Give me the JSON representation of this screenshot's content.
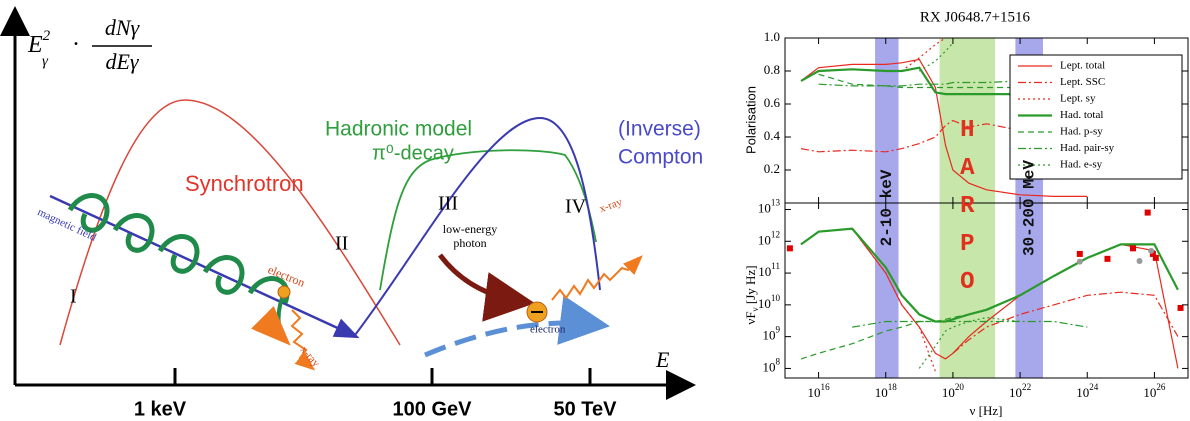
{
  "diagram": {
    "y_axis_label": {
      "symbol": "E",
      "symbol_sub": "γ",
      "symbol_sup": "2",
      "dot": "·",
      "numerator": "dNγ",
      "denominator": "dEγ"
    },
    "x_axis_label": "E",
    "ticks": [
      "1 keV",
      "100 GeV",
      "50 TeV"
    ],
    "labels": {
      "synchrotron": "Synchrotron",
      "hadronic_model": "Hadronic model",
      "pi_decay": "π⁰-decay",
      "inverse": "(Inverse)",
      "compton": "Compton",
      "magnetic_field": "magnetic field",
      "electron_left": "electron",
      "xray_left": "x-ray",
      "low_energy_photon": [
        "low-energy",
        "photon"
      ],
      "electron_right": "electron",
      "xray_right": "x-ray"
    },
    "regions": [
      "I",
      "II",
      "III",
      "IV"
    ]
  },
  "chart_data": [
    {
      "type": "line",
      "title": "RX J0648.7+1516",
      "y_label": "Polarisation",
      "x": [
        3000000000000000.0,
        1e+16,
        1e+17,
        1e+18,
        3e+18,
        1e+19,
        3e+19,
        6e+19,
        1e+20,
        3e+20,
        1e+21,
        1e+22,
        1e+23,
        1e+24,
        1e+25,
        1e+26,
        5e+26
      ],
      "xlim": [
        1000000000000000.0,
        1e+27
      ],
      "xscale": "log",
      "ylim": [
        0,
        1
      ],
      "yticks": [
        0.2,
        0.4,
        0.6,
        0.8,
        {
          "value": 1,
          "label": "1.0"
        }
      ],
      "legend": "upper right",
      "bands": [
        {
          "label": "2-10 keV",
          "from": 4.8e+17,
          "to": 2.4e+18,
          "color": "#8a8ae6",
          "text_color": "#111111"
        },
        {
          "label": "HARPO",
          "from": 4e+19,
          "to": 1.8e+21,
          "color": "#b4de8c",
          "text_color": "#e0301e"
        },
        {
          "label": "30-200 MeV",
          "from": 7.25e+21,
          "to": 4.8e+22,
          "color": "#8a8ae6",
          "text_color": "#111111"
        }
      ],
      "series": [
        {
          "name": "Lept. total",
          "color": "#e8291f",
          "style": "solid",
          "values": [
            0.74,
            0.82,
            0.84,
            0.84,
            0.85,
            0.87,
            0.7,
            0.35,
            0.2,
            0.12,
            0.08,
            0.05,
            0.04,
            0.04,
            null,
            null,
            null
          ]
        },
        {
          "name": "Lept. SSC",
          "color": "#e8291f",
          "style": "dashdot",
          "values": [
            0.33,
            0.31,
            0.32,
            0.31,
            0.33,
            0.36,
            0.4,
            0.47,
            0.5,
            0.46,
            0.48,
            0.44,
            null,
            null,
            null,
            null,
            null
          ]
        },
        {
          "name": "Lept. sy",
          "color": "#e8291f",
          "style": "dotted",
          "values": [
            null,
            null,
            null,
            null,
            0.8,
            0.88,
            0.96,
            1.0,
            null,
            null,
            null,
            null,
            null,
            null,
            null,
            null,
            null
          ]
        },
        {
          "name": "Had. total",
          "color": "#2a9a2a",
          "style": "thick",
          "values": [
            0.74,
            0.8,
            0.81,
            0.8,
            0.8,
            0.82,
            0.67,
            0.66,
            0.66,
            0.66,
            0.66,
            0.66,
            0.66,
            0.67,
            0.67,
            0.68,
            0.68
          ]
        },
        {
          "name": "Had. p-sy",
          "color": "#2a9a2a",
          "style": "dashed",
          "values": [
            null,
            0.78,
            0.72,
            0.71,
            0.7,
            0.7,
            0.7,
            0.7,
            0.7,
            0.7,
            0.7,
            0.7,
            0.7,
            0.7,
            0.7,
            0.71,
            0.71
          ]
        },
        {
          "name": "Had. pair-sy",
          "color": "#2a9a2a",
          "style": "dashdot",
          "values": [
            null,
            0.72,
            0.71,
            0.71,
            0.71,
            0.72,
            0.72,
            0.72,
            0.73,
            0.73,
            0.73,
            0.74,
            0.74,
            0.74,
            0.74,
            0.74,
            0.74
          ]
        },
        {
          "name": "Had. e-sy",
          "color": "#2a9a2a",
          "style": "dotted",
          "values": [
            null,
            null,
            null,
            null,
            null,
            0.8,
            0.86,
            0.92,
            0.97,
            null,
            null,
            null,
            null,
            null,
            null,
            null,
            null
          ]
        }
      ]
    },
    {
      "type": "line",
      "y_label": "νF_ν [Jy Hz]",
      "x_label": "ν [Hz]",
      "x": [
        3000000000000000.0,
        1e+16,
        1e+17,
        1e+18,
        3e+18,
        1e+19,
        3e+19,
        6e+19,
        1e+20,
        3e+20,
        1e+21,
        1e+22,
        1e+23,
        1e+24,
        1e+25,
        1e+26,
        5e+26
      ],
      "xlim": [
        1000000000000000.0,
        1e+27
      ],
      "xscale": "log",
      "ylim": [
        50000000.0,
        16000000000000.0
      ],
      "yscale": "log",
      "xticks": [
        {
          "value": 1e+16,
          "label": "10^16"
        },
        {
          "value": 1e+18,
          "label": "10^18"
        },
        {
          "value": 1e+20,
          "label": "10^20"
        },
        {
          "value": 1e+22,
          "label": "10^22"
        },
        {
          "value": 1e+24,
          "label": "10^24"
        },
        {
          "value": 1e+26,
          "label": "10^26"
        }
      ],
      "yticks": [
        {
          "value": 100000000.0,
          "label": "10^8"
        },
        {
          "value": 1000000000.0,
          "label": "10^9"
        },
        {
          "value": 10000000000.0,
          "label": "10^10"
        },
        {
          "value": 100000000000.0,
          "label": "10^11"
        },
        {
          "value": 1000000000000.0,
          "label": "10^12"
        },
        {
          "value": 10000000000000.0,
          "label": "10^13"
        }
      ],
      "series": [
        {
          "color": "#e8291f",
          "style": "solid",
          "values": [
            800000000000.0,
            2000000000000.0,
            2500000000000.0,
            100000000000.0,
            10000000000.0,
            2000000000.0,
            300000000.0,
            200000000.0,
            300000000.0,
            1000000000.0,
            3000000000.0,
            20000000000.0,
            80000000000.0,
            300000000000.0,
            800000000000.0,
            500000000000.0,
            100000000.0
          ]
        },
        {
          "color": "#e8291f",
          "style": "dashdot",
          "values": [
            null,
            null,
            null,
            null,
            null,
            null,
            null,
            null,
            300000000.0,
            800000000.0,
            2000000000.0,
            5000000000.0,
            10000000000.0,
            20000000000.0,
            25000000000.0,
            20000000000.0,
            1000000000.0
          ]
        },
        {
          "color": "#e8291f",
          "style": "dotted",
          "values": [
            800000000000.0,
            2000000000000.0,
            2500000000000.0,
            100000000000.0,
            10000000000.0,
            2000000000.0,
            80000000.0,
            null,
            null,
            null,
            null,
            null,
            null,
            null,
            null,
            null,
            null
          ]
        },
        {
          "color": "#2a9a2a",
          "style": "thick",
          "values": [
            800000000000.0,
            2000000000000.0,
            2500000000000.0,
            150000000000.0,
            20000000000.0,
            5000000000.0,
            3000000000.0,
            3000000000.0,
            3500000000.0,
            5000000000.0,
            7000000000.0,
            20000000000.0,
            80000000000.0,
            300000000000.0,
            800000000000.0,
            800000000000.0,
            30000000000.0
          ]
        },
        {
          "color": "#2a9a2a",
          "style": "dashed",
          "values": [
            200000000.0,
            300000000.0,
            600000000.0,
            1500000000.0,
            2000000000.0,
            3000000000.0,
            3000000000.0,
            3500000000.0,
            4000000000.0,
            5000000000.0,
            7000000000.0,
            20000000000.0,
            80000000000.0,
            300000000000.0,
            800000000000.0,
            800000000000.0,
            30000000000.0
          ]
        },
        {
          "color": "#2a9a2a",
          "style": "dashdot",
          "values": [
            null,
            null,
            2000000000.0,
            3000000000.0,
            3000000000.0,
            3000000000.0,
            3000000000.0,
            3000000000.0,
            3000000000.0,
            3000000000.0,
            3000000000.0,
            3000000000.0,
            3000000000.0,
            2000000000.0,
            null,
            null,
            null
          ]
        },
        {
          "color": "#2a9a2a",
          "style": "dotted",
          "values": [
            null,
            null,
            null,
            null,
            null,
            100000000.0,
            500000000.0,
            1500000000.0,
            2000000000.0,
            3000000000.0,
            4000000000.0,
            3000000000.0,
            null,
            null,
            null,
            null,
            null
          ]
        }
      ],
      "observations": [
        {
          "color": "#e00000",
          "marker": "square",
          "x": [
            1400000000000000.0,
            6e+23,
            4e+24,
            2.3e+25,
            6.3e+25,
            9e+25,
            1.1e+26,
            6e+26
          ],
          "values": [
            600000000000.0,
            400000000000.0,
            280000000000.0,
            600000000000.0,
            8000000000000.0,
            400000000000.0,
            300000000000.0,
            8000000000.0
          ]
        },
        {
          "color": "#999999",
          "marker": "circle",
          "x": [
            6e+23,
            3.6e+25,
            8e+25
          ],
          "values": [
            230000000000.0,
            240000000000.0,
            500000000000.0
          ]
        }
      ]
    }
  ]
}
